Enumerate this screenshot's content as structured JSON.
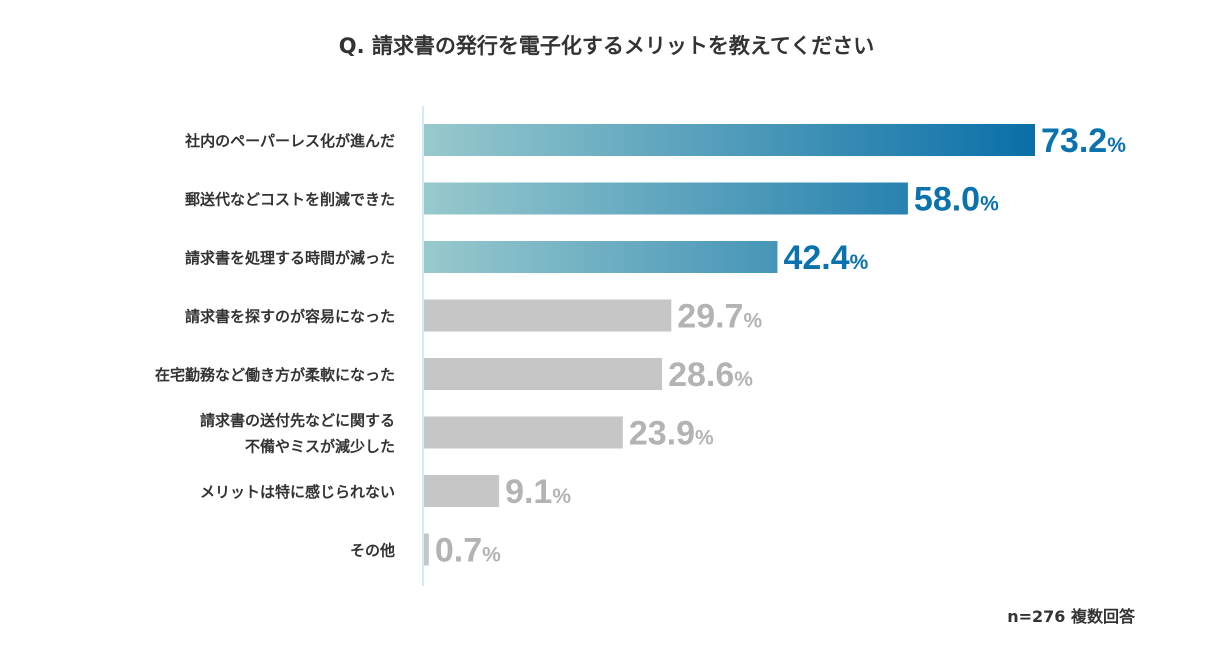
{
  "chart_data": {
    "type": "bar",
    "orientation": "horizontal",
    "title": "Q. 請求書の発行を電子化するメリットを教えてください",
    "categories": [
      "社内のペーパーレス化が進んだ",
      "郵送代などコストを削減できた",
      "請求書を処理する時間が減った",
      "請求書を探すのが容易になった",
      "在宅勤務など働き方が柔軟になった",
      "請求書の送付先などに関する\n不備やミスが減少した",
      "メリットは特に感じられない",
      "その他"
    ],
    "values": [
      73.2,
      58.0,
      42.4,
      29.7,
      28.6,
      23.9,
      9.1,
      0.7
    ],
    "value_format": "%",
    "highlighted_count": 3,
    "note": "n=276 複数回答",
    "xlim": [
      0,
      75
    ],
    "grid": false,
    "colors": {
      "highlight_start": "#98c9cd",
      "highlight_end": "#0a6fa8",
      "highlight_label": "#0a72ad",
      "other_bar": "#c6c6c6",
      "other_label": "#b3b3b3",
      "axis": "#cdeef2"
    }
  }
}
